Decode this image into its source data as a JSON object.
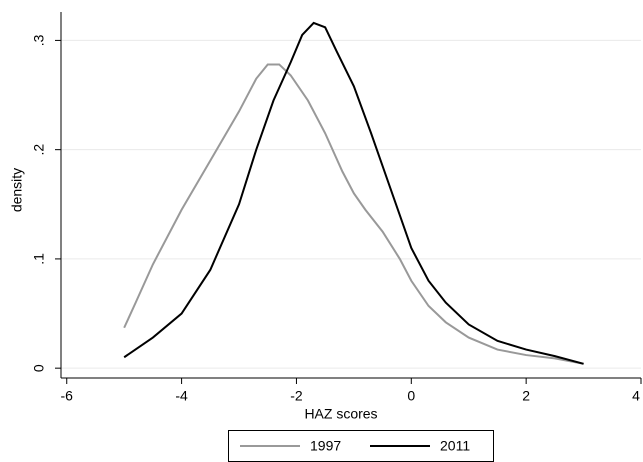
{
  "chart_data": {
    "type": "line",
    "xlabel": "HAZ scores",
    "ylabel": "density",
    "xlim": [
      -6.1,
      4
    ],
    "ylim": [
      -0.009,
      0.326
    ],
    "xticks": [
      -6,
      -4,
      -2,
      0,
      2,
      4
    ],
    "yticks": [
      0,
      {
        "value": 0.1,
        "label": ".1"
      },
      {
        "value": 0.2,
        "label": ".2"
      },
      {
        "value": 0.3,
        "label": ".3"
      }
    ],
    "grid": true,
    "legend": "bottom",
    "series": [
      {
        "name": "1997",
        "color": "#999999",
        "x": [
          -5,
          -4.8,
          -4.5,
          -4,
          -3.5,
          -3,
          -2.7,
          -2.5,
          -2.3,
          -2.1,
          -1.8,
          -1.5,
          -1.2,
          -1,
          -0.8,
          -0.5,
          -0.2,
          0,
          0.3,
          0.6,
          1,
          1.5,
          2,
          2.5,
          3
        ],
        "values": [
          0.037,
          0.06,
          0.095,
          0.145,
          0.19,
          0.235,
          0.265,
          0.278,
          0.278,
          0.268,
          0.245,
          0.215,
          0.18,
          0.16,
          0.145,
          0.125,
          0.1,
          0.08,
          0.057,
          0.042,
          0.028,
          0.017,
          0.012,
          0.009,
          0.004
        ]
      },
      {
        "name": "2011",
        "color": "#000000",
        "x": [
          -5,
          -4.5,
          -4,
          -3.5,
          -3,
          -2.7,
          -2.4,
          -2.1,
          -1.9,
          -1.7,
          -1.5,
          -1.3,
          -1,
          -0.7,
          -0.4,
          -0.2,
          0,
          0.3,
          0.6,
          1,
          1.5,
          2,
          2.5,
          3
        ],
        "values": [
          0.01,
          0.028,
          0.05,
          0.09,
          0.15,
          0.2,
          0.245,
          0.28,
          0.305,
          0.316,
          0.312,
          0.29,
          0.258,
          0.215,
          0.17,
          0.14,
          0.11,
          0.08,
          0.06,
          0.04,
          0.025,
          0.017,
          0.011,
          0.004
        ]
      }
    ]
  }
}
